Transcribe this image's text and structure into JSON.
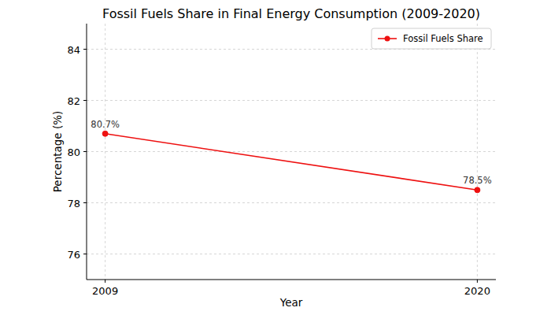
{
  "chart_data": {
    "type": "line",
    "title": "Fossil Fuels Share in Final Energy Consumption (2009-2020)",
    "x_label": "Year",
    "y_label": "Percentage (%)",
    "x": [
      2009,
      2020
    ],
    "series": [
      {
        "name": "Fossil Fuels Share",
        "color": "#ee1111",
        "marker": "circle",
        "values": [
          80.7,
          78.5
        ],
        "value_labels": [
          "80.7%",
          "78.5%"
        ]
      }
    ],
    "xlim": [
      2008.45,
      2020.55
    ],
    "xticks": [
      2009,
      2020
    ],
    "ylim": [
      75,
      85
    ],
    "yticks": [
      76,
      78,
      80,
      82,
      84
    ],
    "grid": true,
    "legend": "upper right",
    "data_labels": true
  }
}
